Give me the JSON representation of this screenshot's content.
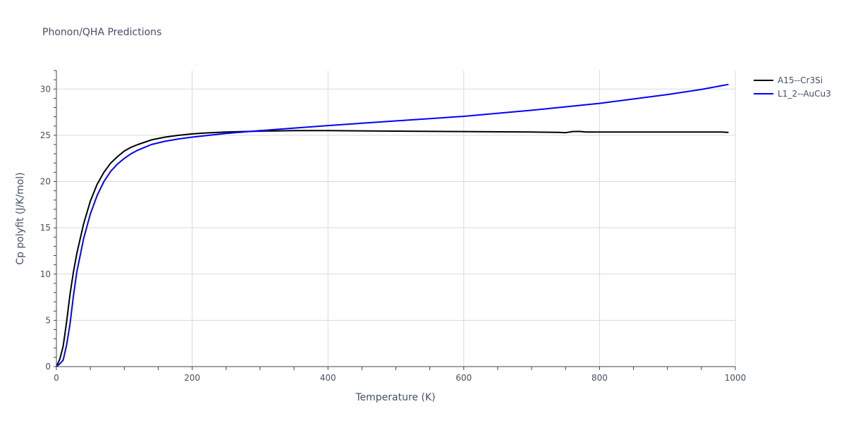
{
  "chart_data": {
    "type": "line",
    "title": "Phonon/QHA Predictions",
    "xlabel": "Temperature (K)",
    "ylabel": "Cp polyfit (J/K/mol)",
    "xlim": [
      0,
      1000
    ],
    "ylim": [
      0,
      32
    ],
    "xticks": [
      0,
      200,
      400,
      600,
      800,
      1000
    ],
    "yticks": [
      0,
      5,
      10,
      15,
      20,
      25,
      30
    ],
    "grid": true,
    "legend_position": "top-right",
    "series": [
      {
        "name": "A15--Cr3Si",
        "color": "#000000",
        "x": [
          0,
          5,
          10,
          15,
          20,
          25,
          30,
          40,
          50,
          60,
          70,
          80,
          90,
          100,
          110,
          120,
          140,
          160,
          180,
          200,
          220,
          250,
          300,
          350,
          400,
          500,
          600,
          700,
          740,
          750,
          760,
          770,
          780,
          800,
          900,
          980,
          990
        ],
        "y": [
          0,
          0.8,
          2.2,
          4.8,
          7.8,
          10.2,
          12.2,
          15.4,
          17.9,
          19.7,
          21.0,
          22.0,
          22.7,
          23.3,
          23.7,
          24.0,
          24.5,
          24.8,
          25.0,
          25.15,
          25.25,
          25.35,
          25.45,
          25.5,
          25.5,
          25.45,
          25.4,
          25.35,
          25.32,
          25.28,
          25.4,
          25.42,
          25.35,
          25.35,
          25.35,
          25.35,
          25.3
        ]
      },
      {
        "name": "L1_2--AuCu3",
        "color": "#0000ff",
        "x": [
          0,
          5,
          10,
          15,
          20,
          25,
          30,
          40,
          50,
          60,
          70,
          80,
          90,
          100,
          110,
          120,
          140,
          160,
          180,
          200,
          250,
          300,
          400,
          500,
          600,
          700,
          800,
          900,
          950,
          990
        ],
        "y": [
          0,
          0.3,
          0.7,
          2.3,
          4.6,
          7.6,
          10.2,
          13.8,
          16.5,
          18.5,
          20.0,
          21.1,
          21.9,
          22.5,
          23.0,
          23.4,
          24.0,
          24.35,
          24.6,
          24.8,
          25.2,
          25.5,
          26.05,
          26.55,
          27.05,
          27.7,
          28.45,
          29.4,
          29.95,
          30.5
        ]
      }
    ]
  }
}
